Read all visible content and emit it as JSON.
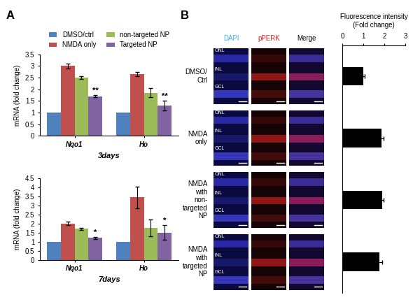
{
  "chart_data": [
    {
      "type": "bar",
      "xlabel": "3days",
      "ylabel": "mRNA (fold change)",
      "categories": [
        "Nqo1",
        "Ho"
      ],
      "series": [
        {
          "name": "DMSO/ctrl",
          "color": "#4f81bd",
          "values": [
            1,
            1
          ]
        },
        {
          "name": "NMDA only",
          "color": "#c0504d",
          "values": [
            3.0,
            2.65
          ],
          "errors": [
            0.1,
            0.1
          ]
        },
        {
          "name": "non-targeted NP",
          "color": "#9bbb59",
          "values": [
            2.5,
            1.85
          ],
          "errors": [
            0.05,
            0.2
          ]
        },
        {
          "name": "Targeted NP",
          "color": "#8064a2",
          "values": [
            1.7,
            1.3
          ],
          "errors": [
            0.05,
            0.2
          ]
        }
      ],
      "ylim": [
        0,
        3.5
      ],
      "yticks": [
        0,
        0.5,
        1,
        1.5,
        2,
        2.5,
        3,
        3.5
      ],
      "legend": "upper center",
      "annotations": [
        {
          "text": "**",
          "category": "Nqo1",
          "series": "Targeted NP"
        },
        {
          "text": "**",
          "category": "Ho",
          "series": "Targeted NP"
        }
      ]
    },
    {
      "type": "bar",
      "xlabel": "7days",
      "ylabel": "mRNA (fold change)",
      "categories": [
        "Nqo1",
        "Ho"
      ],
      "series": [
        {
          "name": "DMSO/ctrl",
          "color": "#4f81bd",
          "values": [
            1,
            1
          ]
        },
        {
          "name": "NMDA only",
          "color": "#c0504d",
          "values": [
            2.0,
            3.45
          ],
          "errors": [
            0.1,
            0.6
          ]
        },
        {
          "name": "non-targeted NP",
          "color": "#9bbb59",
          "values": [
            1.7,
            1.75
          ],
          "errors": [
            0.05,
            0.45
          ]
        },
        {
          "name": "Targeted NP",
          "color": "#8064a2",
          "values": [
            1.2,
            1.5
          ],
          "errors": [
            0.05,
            0.4
          ]
        }
      ],
      "ylim": [
        0,
        4.5
      ],
      "yticks": [
        0,
        0.5,
        1,
        1.5,
        2,
        2.5,
        3,
        3.5,
        4,
        4.5
      ],
      "annotations": [
        {
          "text": "*",
          "category": "Nqo1",
          "series": "Targeted NP"
        },
        {
          "text": "*",
          "category": "Ho",
          "series": "Targeted NP"
        }
      ]
    },
    {
      "type": "bar",
      "orientation": "horizontal",
      "title": "Fluorescence intensity\n(Fold change)",
      "categories": [
        null,
        null,
        null,
        null
      ],
      "values": [
        1.0,
        1.85,
        1.9,
        1.75
      ],
      "errors": [
        0.05,
        0.1,
        0.08,
        0.15
      ],
      "color": "#000000",
      "xlim": [
        0,
        3
      ],
      "xticks": [
        0,
        1,
        2,
        3
      ],
      "tick_labels": "x"
    }
  ],
  "panel_labels": [
    "A",
    "B"
  ],
  "micrographs": {
    "columns": [
      "DAPI",
      "pPERK",
      "Merge"
    ],
    "rows": [
      "DMSO/\nCtrl",
      "NMDA\nonly",
      "NMDA\nwith\nnon-\ntargeted\nNP",
      "NMDA\nwith\ntargeted\nNP"
    ],
    "layers": [
      "ONL",
      "INL",
      "GCL"
    ]
  }
}
